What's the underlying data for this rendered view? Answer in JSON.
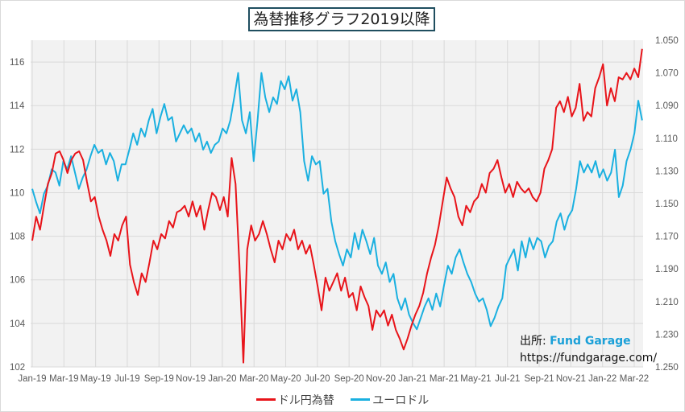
{
  "chart_data": {
    "type": "line",
    "title": "為替推移グラフ2019以降",
    "x_start": "Jan-19",
    "x_end": "Mar-22",
    "x_ticks": [
      "Jan-19",
      "Mar-19",
      "May-19",
      "Jul-19",
      "Sep-19",
      "Nov-19",
      "Jan-20",
      "Mar-20",
      "May-20",
      "Jul-20",
      "Sep-20",
      "Nov-20",
      "Jan-21",
      "Mar-21",
      "May-21",
      "Jul-21",
      "Sep-21",
      "Nov-21",
      "Jan-22",
      "Mar-22"
    ],
    "x_range_months": [
      0,
      38.5
    ],
    "y_left": {
      "ticks": [
        "102",
        "104",
        "106",
        "108",
        "110",
        "112",
        "114",
        "116"
      ],
      "range": [
        102,
        117
      ]
    },
    "y_right": {
      "ticks": [
        "1.050",
        "1.070",
        "1.090",
        "1.110",
        "1.130",
        "1.150",
        "1.170",
        "1.190",
        "1.210",
        "1.230",
        "1.250"
      ],
      "range": [
        1.05,
        1.25
      ],
      "inverted": true
    },
    "grid": true,
    "legend_position": "bottom",
    "series": [
      {
        "name": "ドル円為替",
        "axis": "left",
        "color": "#e8141a",
        "values": [
          107.8,
          108.9,
          108.3,
          109.4,
          110.4,
          110.9,
          111.8,
          111.9,
          111.5,
          110.9,
          111.5,
          111.8,
          111.9,
          111.5,
          110.5,
          109.6,
          109.8,
          108.9,
          108.3,
          107.8,
          107.1,
          108.1,
          107.8,
          108.5,
          108.9,
          106.7,
          105.9,
          105.3,
          106.3,
          105.9,
          106.8,
          107.8,
          107.4,
          108.1,
          107.9,
          108.7,
          108.4,
          109.1,
          109.2,
          109.4,
          108.9,
          109.6,
          108.9,
          109.4,
          108.3,
          109.2,
          110.0,
          109.8,
          109.2,
          109.8,
          108.9,
          111.6,
          110.4,
          106.7,
          102.2,
          107.4,
          108.5,
          107.8,
          108.1,
          108.7,
          108.1,
          107.4,
          106.8,
          107.8,
          107.4,
          108.1,
          107.8,
          108.3,
          107.4,
          107.8,
          107.2,
          107.6,
          106.7,
          105.7,
          104.6,
          106.1,
          105.5,
          105.9,
          106.3,
          105.5,
          106.1,
          105.2,
          105.4,
          104.6,
          105.7,
          105.2,
          104.8,
          103.7,
          104.6,
          104.3,
          104.6,
          103.9,
          104.4,
          103.7,
          103.3,
          102.8,
          103.3,
          103.9,
          104.4,
          104.8,
          105.4,
          106.3,
          107.0,
          107.6,
          108.5,
          109.6,
          110.7,
          110.2,
          109.8,
          108.9,
          108.5,
          109.4,
          109.1,
          109.6,
          109.8,
          110.4,
          110.0,
          110.9,
          111.1,
          111.5,
          110.7,
          110.0,
          110.4,
          109.8,
          110.5,
          110.2,
          110.0,
          110.2,
          109.8,
          109.6,
          110.0,
          111.1,
          111.5,
          112.0,
          113.9,
          114.2,
          113.7,
          114.4,
          113.5,
          113.9,
          115.0,
          113.3,
          113.7,
          113.5,
          114.8,
          115.3,
          115.9,
          114.0,
          114.8,
          114.2,
          115.3,
          115.2,
          115.5,
          115.2,
          115.7,
          115.3,
          116.6
        ]
      },
      {
        "name": "ユーロドル",
        "axis": "right",
        "color": "#1ab0e0",
        "values": [
          1.141,
          1.149,
          1.156,
          1.144,
          1.139,
          1.129,
          1.131,
          1.139,
          1.124,
          1.129,
          1.121,
          1.131,
          1.141,
          1.134,
          1.129,
          1.121,
          1.114,
          1.119,
          1.117,
          1.126,
          1.119,
          1.124,
          1.136,
          1.126,
          1.126,
          1.117,
          1.107,
          1.114,
          1.104,
          1.109,
          1.099,
          1.092,
          1.107,
          1.097,
          1.089,
          1.099,
          1.097,
          1.112,
          1.107,
          1.102,
          1.107,
          1.104,
          1.112,
          1.107,
          1.117,
          1.112,
          1.119,
          1.114,
          1.112,
          1.104,
          1.107,
          1.099,
          1.085,
          1.07,
          1.099,
          1.107,
          1.094,
          1.124,
          1.099,
          1.07,
          1.085,
          1.094,
          1.085,
          1.089,
          1.075,
          1.08,
          1.072,
          1.087,
          1.08,
          1.094,
          1.124,
          1.136,
          1.121,
          1.126,
          1.124,
          1.144,
          1.141,
          1.161,
          1.173,
          1.181,
          1.188,
          1.178,
          1.183,
          1.168,
          1.178,
          1.166,
          1.173,
          1.181,
          1.171,
          1.188,
          1.193,
          1.186,
          1.198,
          1.193,
          1.208,
          1.215,
          1.208,
          1.218,
          1.223,
          1.227,
          1.22,
          1.213,
          1.208,
          1.215,
          1.205,
          1.213,
          1.2,
          1.188,
          1.193,
          1.183,
          1.178,
          1.186,
          1.193,
          1.198,
          1.205,
          1.21,
          1.208,
          1.215,
          1.225,
          1.22,
          1.213,
          1.208,
          1.188,
          1.183,
          1.178,
          1.191,
          1.173,
          1.183,
          1.171,
          1.178,
          1.171,
          1.173,
          1.183,
          1.176,
          1.173,
          1.161,
          1.156,
          1.166,
          1.158,
          1.154,
          1.141,
          1.124,
          1.131,
          1.126,
          1.131,
          1.124,
          1.134,
          1.129,
          1.136,
          1.131,
          1.117,
          1.146,
          1.139,
          1.124,
          1.117,
          1.107,
          1.087,
          1.099
        ]
      }
    ],
    "annotation": {
      "source_label": "出所: ",
      "source_name": "Fund Garage",
      "url": "https://fundgarage.com/"
    }
  }
}
